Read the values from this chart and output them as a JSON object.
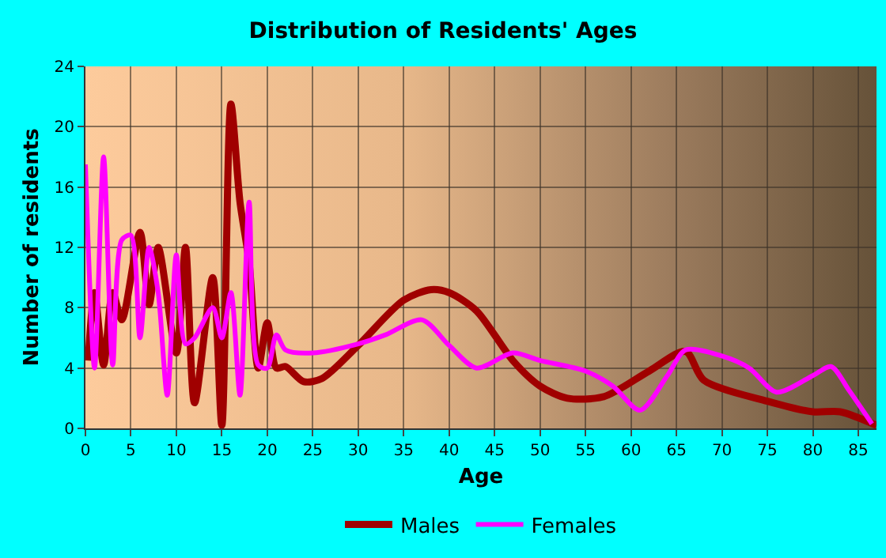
{
  "chart_data": {
    "type": "line",
    "title": "Distribution of Residents' Ages",
    "xlabel": "Age",
    "ylabel": "Number of residents",
    "xlim": [
      0,
      87
    ],
    "xticks": [
      0,
      5,
      10,
      15,
      20,
      25,
      30,
      35,
      40,
      45,
      50,
      55,
      60,
      65,
      70,
      75,
      80,
      85
    ],
    "ylim": [
      0,
      24
    ],
    "yticks": [
      0,
      4,
      8,
      12,
      16,
      20,
      24
    ],
    "grid": true,
    "legend": "bottom",
    "marker": "none",
    "line_style": "solid",
    "series": [
      {
        "name": "Males",
        "color": "#a00000",
        "x": [
          0.3,
          1,
          2,
          3,
          4,
          6,
          7,
          8,
          10,
          11,
          12,
          14,
          15,
          16,
          17,
          18,
          19,
          20,
          21,
          22,
          24,
          26,
          30,
          35,
          38,
          40,
          43,
          47,
          50,
          53,
          57,
          62,
          66,
          68,
          75,
          80,
          83,
          87
        ],
        "values": [
          4.5,
          9,
          4.2,
          9,
          7.2,
          13,
          8.2,
          12,
          5,
          12,
          1.7,
          10,
          0.2,
          21.5,
          15,
          11,
          4,
          7,
          4,
          4.1,
          3.1,
          3.3,
          5.5,
          8.5,
          9.2,
          9,
          7.8,
          4.5,
          2.8,
          2,
          2.1,
          3.8,
          5.1,
          3.2,
          1.8,
          1.1,
          1.1,
          0.2
        ]
      },
      {
        "name": "Females",
        "color": "#ff00ff",
        "x": [
          0,
          1,
          2,
          3,
          4,
          5,
          6,
          7,
          8,
          9,
          10,
          11,
          12,
          14,
          15,
          16,
          17,
          18,
          19,
          20,
          21,
          22,
          25,
          30,
          33,
          37,
          40,
          43,
          47,
          50,
          55,
          58,
          61,
          64,
          66,
          70,
          73,
          76,
          80,
          82,
          84,
          86.5
        ],
        "values": [
          17.5,
          4,
          18,
          4.2,
          12.5,
          12.8,
          6,
          12,
          9,
          2.2,
          11.5,
          5.6,
          6,
          8,
          6,
          9,
          2.2,
          15,
          4.2,
          4,
          6.2,
          5.2,
          5,
          5.6,
          6.2,
          7.2,
          5.5,
          4,
          5,
          4.5,
          3.8,
          2.8,
          1.2,
          3.5,
          5.2,
          4.8,
          4,
          2.4,
          3.5,
          4.1,
          2.5,
          0.3
        ]
      }
    ]
  }
}
